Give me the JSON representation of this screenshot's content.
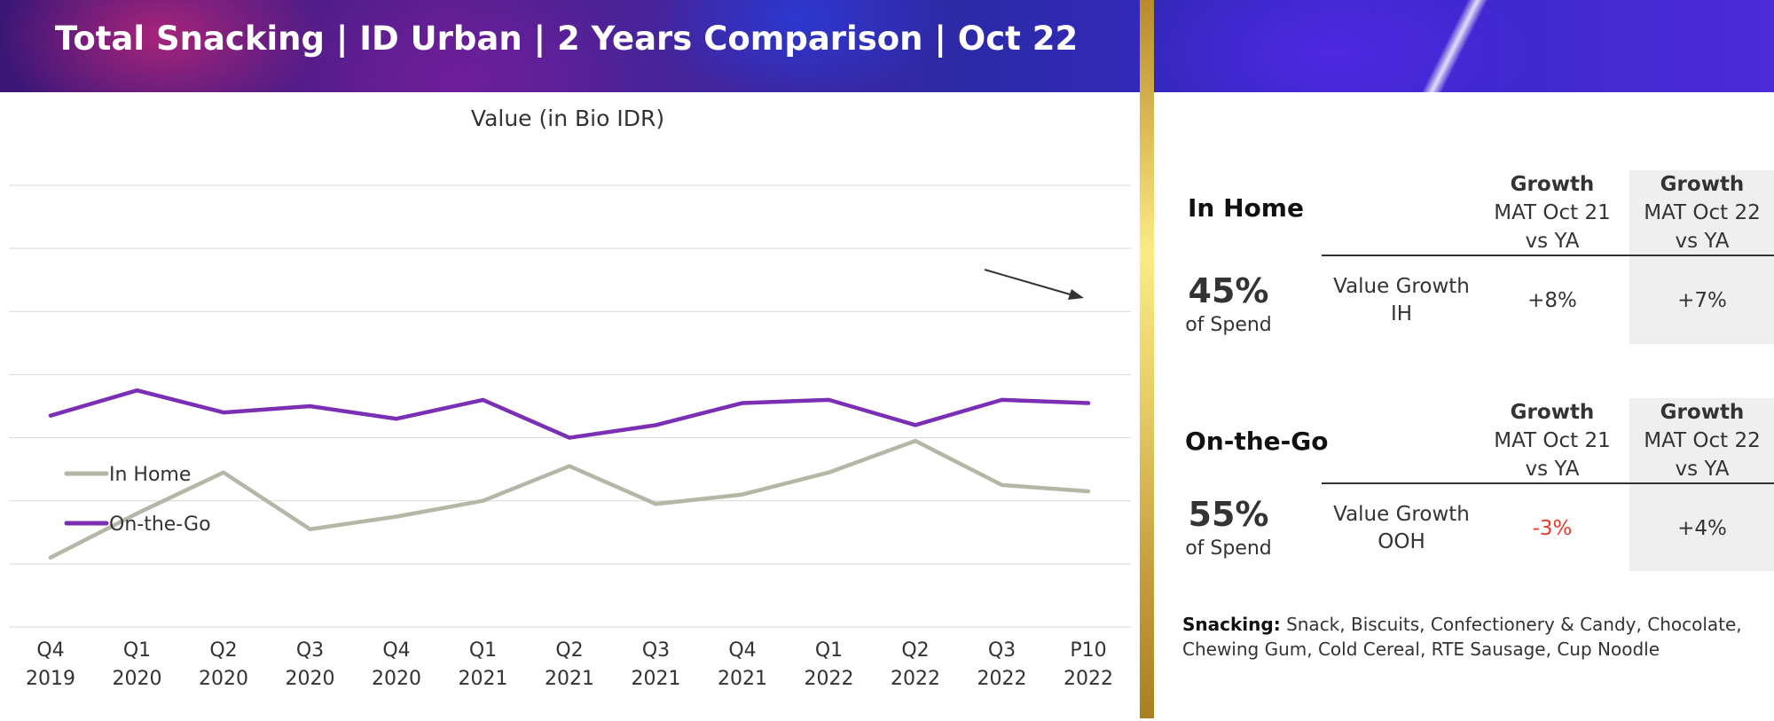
{
  "header": {
    "title": "Total Snacking | ID Urban | 2 Years Comparison | Oct 22"
  },
  "chart_data": {
    "type": "line",
    "title": "Value (in Bio IDR)",
    "categories": [
      [
        "Q4",
        "2019"
      ],
      [
        "Q1",
        "2020"
      ],
      [
        "Q2",
        "2020"
      ],
      [
        "Q3",
        "2020"
      ],
      [
        "Q4",
        "2020"
      ],
      [
        "Q1",
        "2021"
      ],
      [
        "Q2",
        "2021"
      ],
      [
        "Q3",
        "2021"
      ],
      [
        "Q4",
        "2021"
      ],
      [
        "Q1",
        "2022"
      ],
      [
        "Q2",
        "2022"
      ],
      [
        "Q3",
        "2022"
      ],
      [
        "P10",
        "2022"
      ]
    ],
    "series": [
      {
        "name": "In Home",
        "color": "#b5b7a6",
        "values": [
          1.1,
          1.8,
          2.45,
          1.55,
          1.75,
          2.0,
          2.55,
          1.95,
          2.1,
          2.45,
          2.95,
          2.25,
          2.15
        ]
      },
      {
        "name": "On-the-Go",
        "color": "#7b2fb5",
        "values": [
          3.35,
          3.75,
          3.4,
          3.5,
          3.3,
          3.6,
          3.0,
          3.2,
          3.55,
          3.6,
          3.2,
          3.6,
          3.55
        ]
      }
    ],
    "ylim": [
      0,
      7
    ],
    "ygrid_count": 7,
    "grid": true,
    "show_y_labels": false,
    "legend_position": "left-middle",
    "annotation": "downward-trend-arrow"
  },
  "panel": {
    "in_home": {
      "title": "In Home",
      "share_pct": "45%",
      "share_label": "of Spend",
      "metric_label": "Value Growth IH",
      "col1": {
        "head": "Growth",
        "sub": "MAT Oct 21 vs YA",
        "value": "+8%"
      },
      "col2": {
        "head": "Growth",
        "sub": "MAT Oct 22 vs YA",
        "value": "+7%"
      }
    },
    "on_the_go": {
      "title": "On-the-Go",
      "share_pct": "55%",
      "share_label": "of Spend",
      "metric_label": "Value Growth OOH",
      "col1": {
        "head": "Growth",
        "sub": "MAT Oct 21 vs YA",
        "value": "-3%",
        "value_color": "#e63a2b"
      },
      "col2": {
        "head": "Growth",
        "sub": "MAT Oct 22 vs YA",
        "value": "+4%"
      }
    },
    "footnote": {
      "label": "Snacking:",
      "text": "Snack, Biscuits, Confectionery & Candy, Chocolate, Chewing Gum, Cold Cereal, RTE Sausage, Cup Noodle"
    }
  }
}
